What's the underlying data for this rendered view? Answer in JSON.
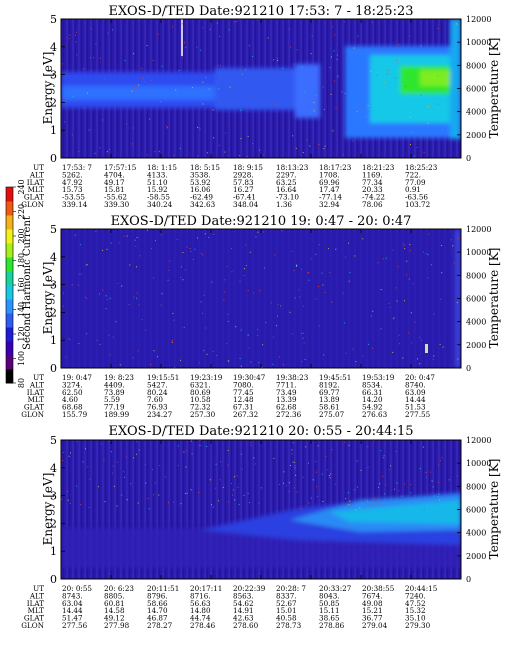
{
  "colorbar": {
    "label": "Second Harmonic Current",
    "ticks": [
      "80",
      "100",
      "120",
      "140",
      "160",
      "180",
      "200",
      "220",
      "240"
    ],
    "colors": [
      "#000000",
      "#5a007a",
      "#3a00b0",
      "#1d1dd6",
      "#2e5cf0",
      "#2a93ff",
      "#19c8e8",
      "#18d49a",
      "#2ee62e",
      "#a8ee19",
      "#f2f21a",
      "#f5b21a",
      "#ee5a14",
      "#e01010"
    ]
  },
  "chart_data": [
    {
      "type": "heatmap",
      "title": "EXOS-D/TED   Date:921210  17:53: 7 - 18:25:23",
      "ylabel": "Energy [eV]",
      "y2label": "Temperature [K]",
      "ylim": [
        0,
        5
      ],
      "y2lim": [
        0,
        12000
      ],
      "yticks": [
        "0",
        "1",
        "2",
        "3",
        "4",
        "5"
      ],
      "y2ticks": [
        "0",
        "2000",
        "4000",
        "6000",
        "8000",
        "10000",
        "12000"
      ],
      "rows": [
        {
          "label": "UT",
          "values": [
            "17:53: 7",
            "17:57:15",
            "18: 1:15",
            "18: 5:15",
            "18: 9:15",
            "18:13:23",
            "18:17:23",
            "18:21:23",
            "18:25:23"
          ]
        },
        {
          "label": "ALT",
          "values": [
            "5262.",
            "4704.",
            "4133.",
            "3538.",
            "2928.",
            "2297.",
            "1708.",
            "1169.",
            "722."
          ]
        },
        {
          "label": "ILAT",
          "values": [
            "47.92",
            "49.17",
            "51.10",
            "53.92",
            "57.83",
            "63.25",
            "69.96",
            "77.34",
            "77.09"
          ]
        },
        {
          "label": "MLT",
          "values": [
            "15.73",
            "15.81",
            "15.92",
            "16.06",
            "16.27",
            "16.64",
            "17.47",
            "20.33",
            "0.91"
          ]
        },
        {
          "label": "GLAT",
          "values": [
            "-53.55",
            "-55.62",
            "-58.55",
            "-62.49",
            "-67.41",
            "-73.10",
            "-77.14",
            "-74.22",
            "-63.56"
          ]
        },
        {
          "label": "GLON",
          "values": [
            "339.14",
            "339.30",
            "340.24",
            "342.63",
            "348.04",
            "1.36",
            "32.94",
            "78.06",
            "103.72"
          ]
        }
      ]
    },
    {
      "type": "heatmap",
      "title": "EXOS-D/TED   Date:921210  19: 0:47 - 20: 0:47",
      "ylabel": "Energy [eV]",
      "y2label": "Temperature [K]",
      "ylim": [
        0,
        5
      ],
      "y2lim": [
        0,
        12000
      ],
      "yticks": [
        "0",
        "1",
        "2",
        "3",
        "4",
        "5"
      ],
      "y2ticks": [
        "0",
        "2000",
        "4000",
        "6000",
        "8000",
        "10000",
        "12000"
      ],
      "rows": [
        {
          "label": "UT",
          "values": [
            "19: 0:47",
            "19: 8:23",
            "19:15:51",
            "19:23:19",
            "19:30:47",
            "19:38:23",
            "19:45:51",
            "19:53:19",
            "20: 0:47"
          ]
        },
        {
          "label": "ALT",
          "values": [
            "3274.",
            "4409.",
            "5427.",
            "6321.",
            "7080.",
            "7711.",
            "8192.",
            "8534.",
            "8740."
          ]
        },
        {
          "label": "ILAT",
          "values": [
            "62.50",
            "73.89",
            "80.24",
            "80.69",
            "77.45",
            "73.49",
            "69.77",
            "66.31",
            "63.09"
          ]
        },
        {
          "label": "MLT",
          "values": [
            "4.60",
            "5.59",
            "7.60",
            "10.58",
            "12.48",
            "13.39",
            "13.89",
            "14.20",
            "14.44"
          ]
        },
        {
          "label": "GLAT",
          "values": [
            "68.68",
            "77.19",
            "76.93",
            "72.32",
            "67.31",
            "62.68",
            "58.61",
            "54.92",
            "51.53"
          ]
        },
        {
          "label": "GLON",
          "values": [
            "155.79",
            "189.99",
            "234.27",
            "257.30",
            "267.32",
            "272.36",
            "275.07",
            "276.63",
            "277.55"
          ]
        }
      ]
    },
    {
      "type": "heatmap",
      "title": "EXOS-D/TED   Date:921210  20: 0:55 - 20:44:15",
      "ylabel": "Energy [eV]",
      "y2label": "Temperature [K]",
      "ylim": [
        0,
        5
      ],
      "y2lim": [
        0,
        12000
      ],
      "yticks": [
        "0",
        "1",
        "2",
        "3",
        "4",
        "5"
      ],
      "y2ticks": [
        "0",
        "2000",
        "4000",
        "6000",
        "8000",
        "10000",
        "12000"
      ],
      "rows": [
        {
          "label": "UT",
          "values": [
            "20: 0:55",
            "20: 6:23",
            "20:11:51",
            "20:17:11",
            "20:22:39",
            "20:28: 7",
            "20:33:27",
            "20:38:55",
            "20:44:15"
          ]
        },
        {
          "label": "ALT",
          "values": [
            "8743.",
            "8805.",
            "8796.",
            "8716.",
            "8563.",
            "8337.",
            "8043.",
            "7674.",
            "7240."
          ]
        },
        {
          "label": "ILAT",
          "values": [
            "63.04",
            "60.81",
            "58.66",
            "56.63",
            "54.62",
            "52.67",
            "50.85",
            "49.08",
            "47.52"
          ]
        },
        {
          "label": "MLT",
          "values": [
            "14.44",
            "14.58",
            "14.70",
            "14.80",
            "14.91",
            "15.01",
            "15.11",
            "15.21",
            "15.32"
          ]
        },
        {
          "label": "GLAT",
          "values": [
            "51.47",
            "49.12",
            "46.87",
            "44.74",
            "42.63",
            "40.58",
            "38.65",
            "36.77",
            "35.10"
          ]
        },
        {
          "label": "GLON",
          "values": [
            "277.56",
            "277.98",
            "278.27",
            "278.46",
            "278.60",
            "278.73",
            "278.86",
            "279.04",
            "279.30"
          ]
        }
      ]
    }
  ]
}
